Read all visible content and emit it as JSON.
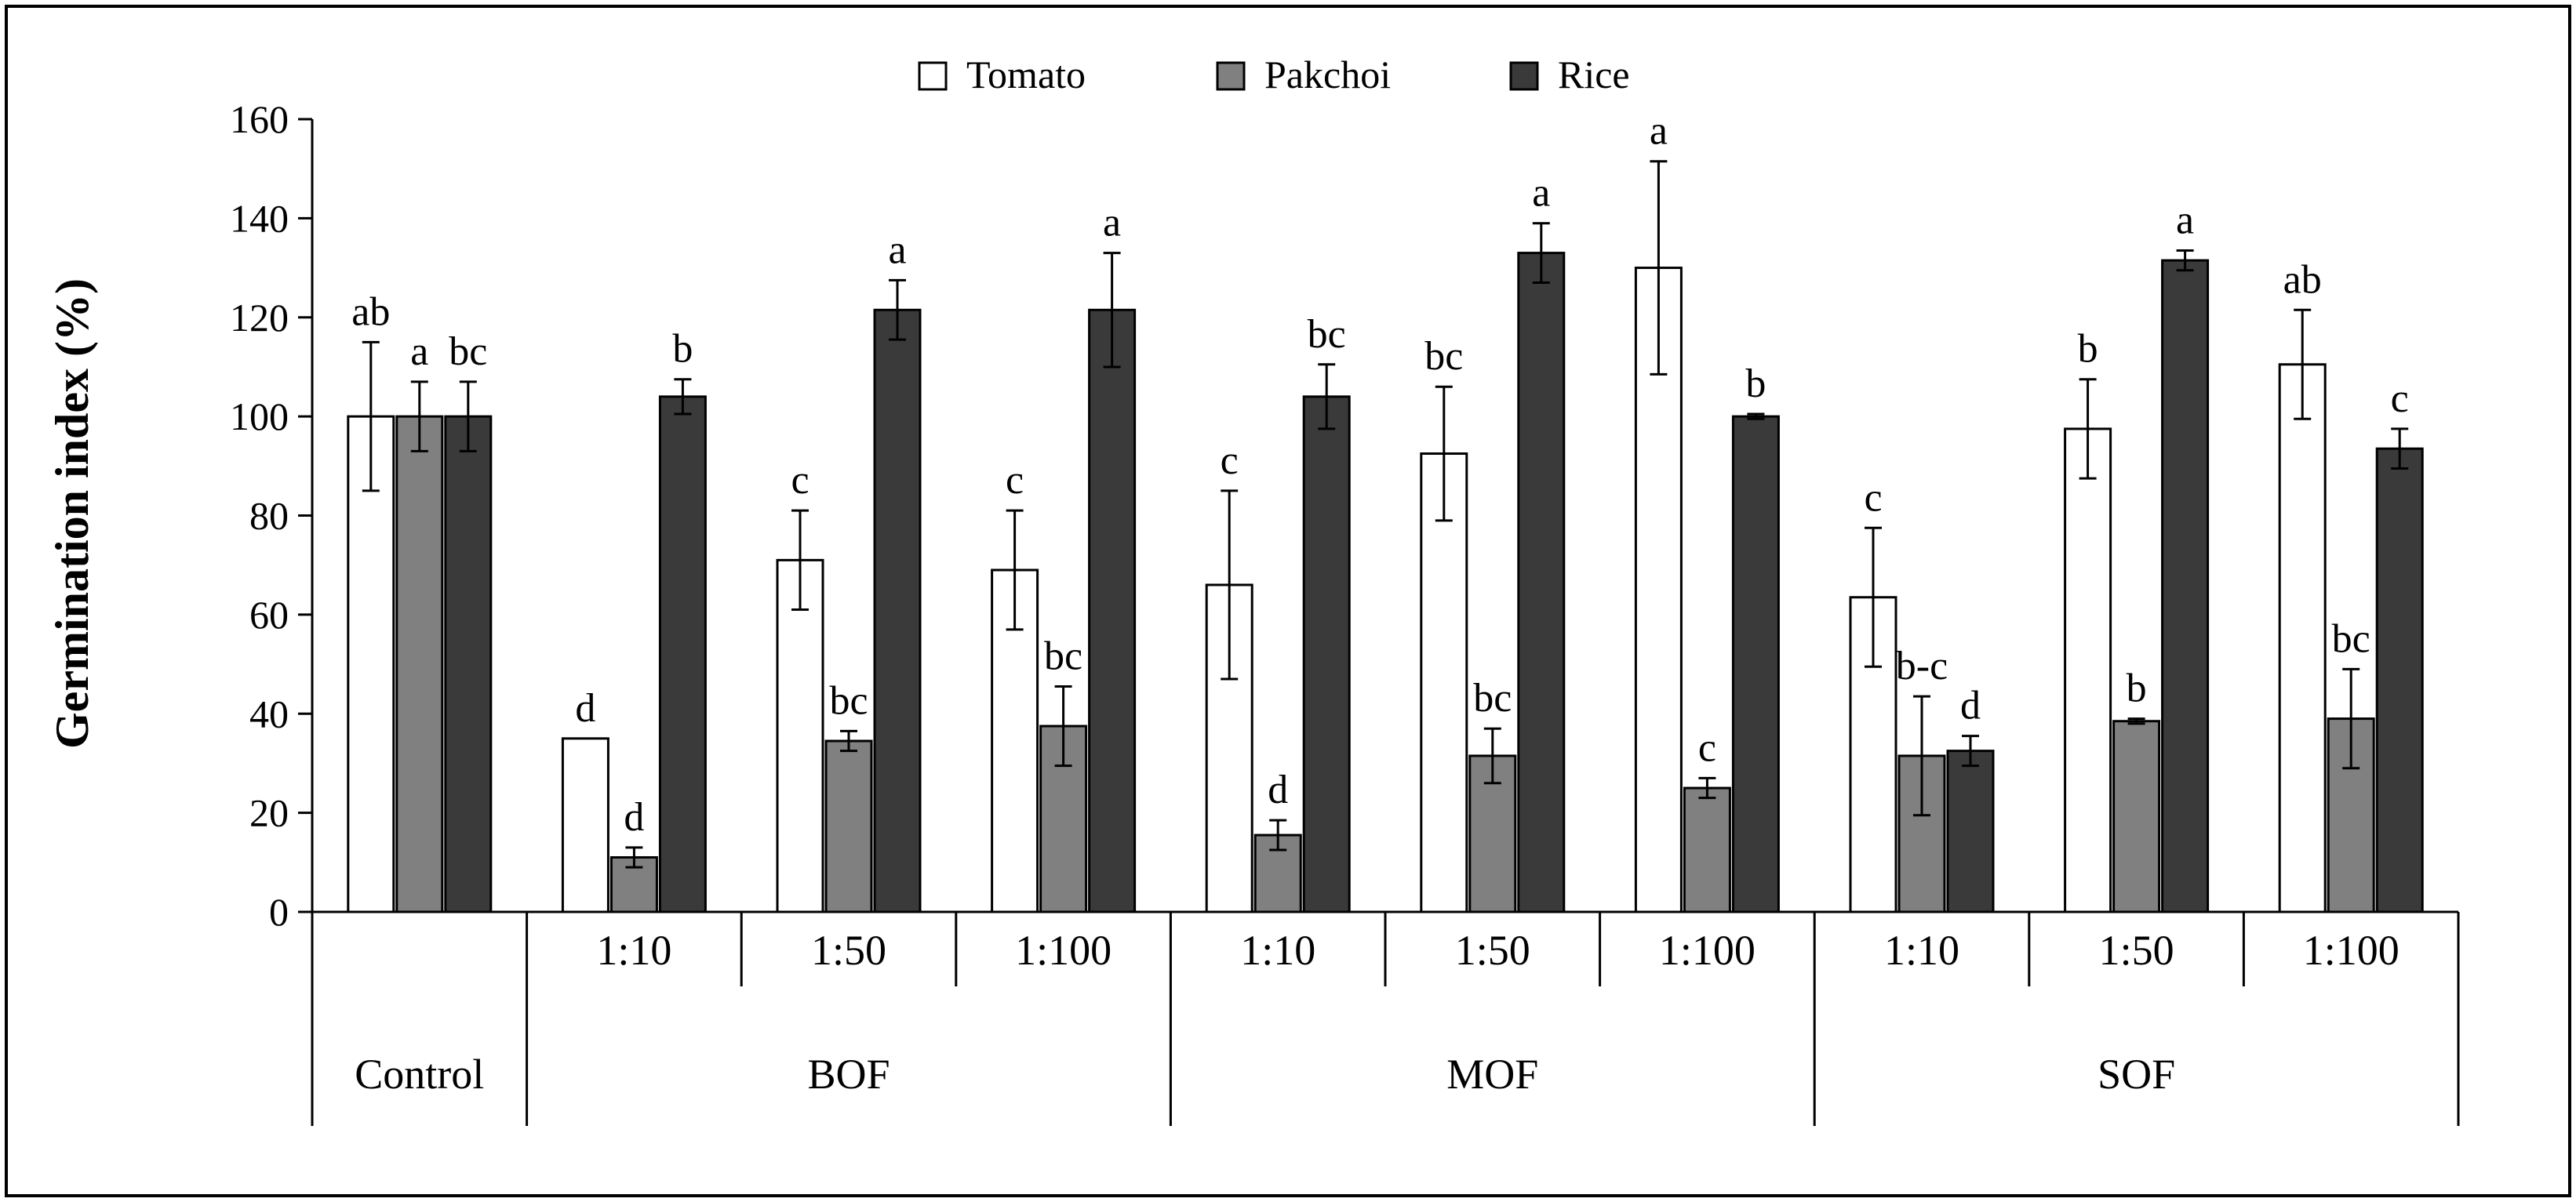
{
  "chart_data": {
    "type": "bar",
    "ylabel": "Germination index (%)",
    "ylim": [
      0,
      160
    ],
    "yticks": [
      0,
      20,
      40,
      60,
      80,
      100,
      120,
      140,
      160
    ],
    "legend_position": "top-center",
    "series": [
      {
        "name": "Tomato",
        "color": "#ffffff",
        "values": [
          100,
          35,
          71,
          69,
          66,
          92.5,
          130,
          63.5,
          97.5,
          110.5
        ],
        "errors": [
          15,
          0,
          10,
          12,
          19,
          13.5,
          21.5,
          14,
          10,
          11
        ],
        "letters": [
          "ab",
          "d",
          "c",
          "c",
          "c",
          "bc",
          "a",
          "c",
          "b",
          "ab"
        ]
      },
      {
        "name": "Pakchoi",
        "color": "#808080",
        "values": [
          100,
          11,
          34.5,
          37.5,
          15.5,
          31.5,
          25,
          31.5,
          38.5,
          39
        ],
        "errors": [
          7,
          2,
          2,
          8,
          3,
          5.5,
          2,
          12,
          0.5,
          10
        ],
        "letters": [
          "a",
          "d",
          "bc",
          "bc",
          "d",
          "bc",
          "c",
          "b-c",
          "b",
          "bc"
        ]
      },
      {
        "name": "Rice",
        "color": "#3a3a3a",
        "values": [
          100,
          104,
          121.5,
          121.5,
          104,
          133,
          100,
          32.5,
          131.5,
          93.5
        ],
        "errors": [
          7,
          3.5,
          6,
          11.5,
          6.5,
          6,
          0.5,
          3,
          2,
          4
        ],
        "letters": [
          "bc",
          "b",
          "a",
          "a",
          "bc",
          "a",
          "b",
          "d",
          "a",
          "c"
        ]
      }
    ],
    "categories": [
      {
        "dilution": "",
        "group": "Control"
      },
      {
        "dilution": "1:10",
        "group": "BOF"
      },
      {
        "dilution": "1:50",
        "group": "BOF"
      },
      {
        "dilution": "1:100",
        "group": "BOF"
      },
      {
        "dilution": "1:10",
        "group": "MOF"
      },
      {
        "dilution": "1:50",
        "group": "MOF"
      },
      {
        "dilution": "1:100",
        "group": "MOF"
      },
      {
        "dilution": "1:10",
        "group": "SOF"
      },
      {
        "dilution": "1:50",
        "group": "SOF"
      },
      {
        "dilution": "1:100",
        "group": "SOF"
      }
    ],
    "groups": [
      "Control",
      "BOF",
      "MOF",
      "SOF"
    ]
  }
}
